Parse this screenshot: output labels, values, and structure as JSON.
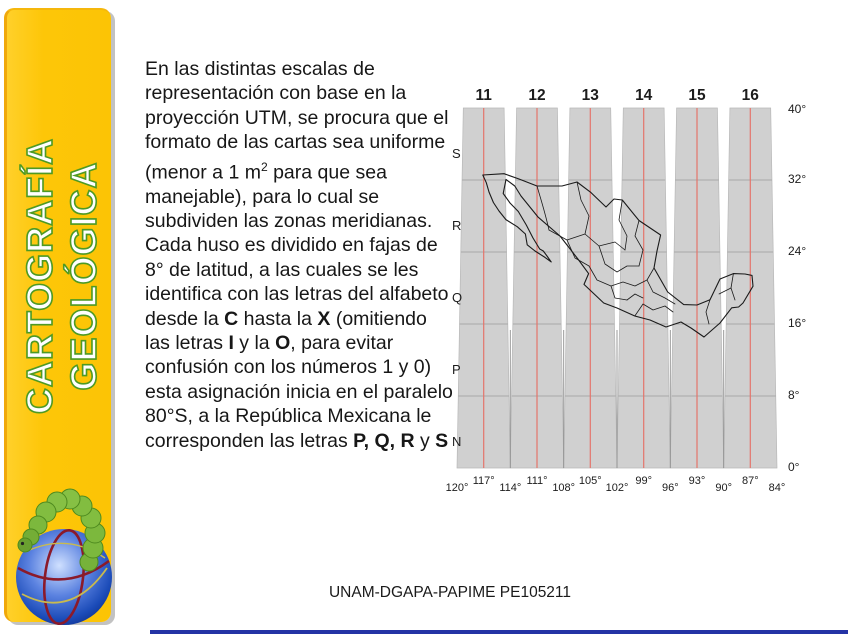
{
  "sidebar": {
    "title_line1": "CARTOGRAFÍA",
    "title_line2": "GEOLÓGICA"
  },
  "body": {
    "paragraphs": [
      [
        {
          "t": "En las distintas escalas de representación con base en la proyección UTM, se procura que el formato de las cartas sea uniforme (menor a 1 m"
        },
        {
          "t": "2",
          "sup": true
        },
        {
          "t": " para que sea manejable), para lo cual se subdividen las zonas meridianas."
        }
      ],
      [
        {
          "t": "Cada huso es dividido en fajas de 8° de latitud, a las cuales se les identifica con las letras del alfabeto desde la "
        },
        {
          "t": "C",
          "b": true
        },
        {
          "t": " hasta la "
        },
        {
          "t": "X",
          "b": true
        },
        {
          "t": " (omitiendo las letras "
        },
        {
          "t": "I",
          "b": true
        },
        {
          "t": " y la "
        },
        {
          "t": "O",
          "b": true
        },
        {
          "t": ", para evitar confusión con los números 1 y 0) esta asignación inicia en el paralelo 80°S, a la República Mexicana le corresponden las letras "
        },
        {
          "t": "P, Q, R",
          "b": true
        },
        {
          "t": " y "
        },
        {
          "t": "S",
          "b": true
        }
      ]
    ]
  },
  "map": {
    "zone_numbers": [
      "11",
      "12",
      "13",
      "14",
      "15",
      "16"
    ],
    "lat_letters": [
      "S",
      "R",
      "Q",
      "P",
      "N"
    ],
    "lat_degrees": [
      "40°",
      "32°",
      "24°",
      "16°",
      "8°",
      "0°"
    ],
    "lon_degrees": [
      "120°",
      "117°",
      "114°",
      "111°",
      "108°",
      "105°",
      "102°",
      "99°",
      "96°",
      "93°",
      "90°",
      "87°",
      "84°"
    ],
    "colors": {
      "strip_gray": "#d0d0d0",
      "central_meridian_red": "#e4756b",
      "gridline_gray": "#a8a8a8",
      "outline_black": "#1a1a1a"
    }
  },
  "footer": {
    "text": "UNAM-DGAPA-PAPIME PE105211"
  },
  "colors": {
    "sidebar_yellow": "#fdc608",
    "title_green_outline": "#4e9a24",
    "accent_line_blue": "#2433a5"
  }
}
